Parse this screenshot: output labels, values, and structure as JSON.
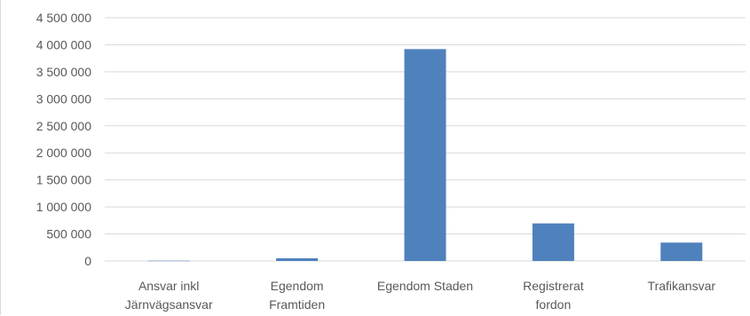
{
  "chart_data": {
    "type": "bar",
    "categories": [
      [
        "Ansvar inkl",
        "Järnvägsansvar"
      ],
      [
        "Egendom",
        "Framtiden"
      ],
      [
        "Egendom Staden"
      ],
      [
        "Registrerat",
        "fordon"
      ],
      [
        "Trafikansvar"
      ]
    ],
    "values": [
      5000,
      50000,
      3920000,
      695000,
      340000
    ],
    "ylim": [
      0,
      4500000
    ],
    "ytick_labels": [
      "0",
      "500 000",
      "1 000 000",
      "1 500 000",
      "2 000 000",
      "2 500 000",
      "3 000 000",
      "3 500 000",
      "4 000 000",
      "4 500 000"
    ],
    "grid": true,
    "bar_color": "#4f81bd",
    "grid_color": "#d9d9d9",
    "title": "",
    "xlabel": "",
    "ylabel": ""
  }
}
